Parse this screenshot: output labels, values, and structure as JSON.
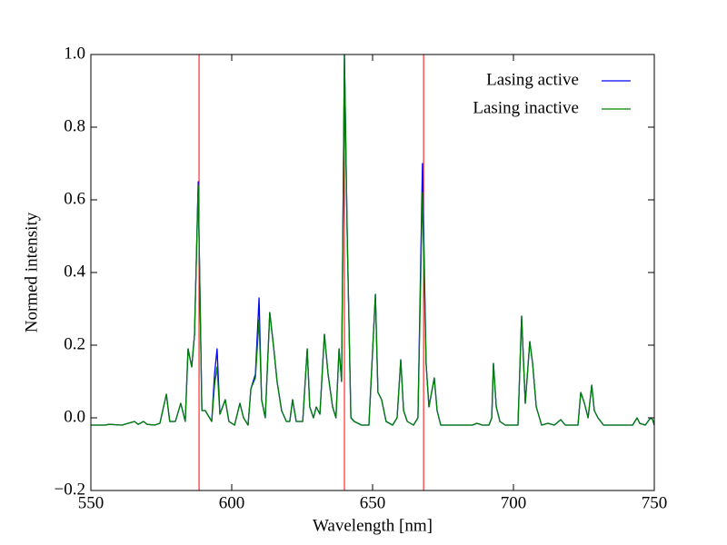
{
  "chart_data": {
    "type": "line",
    "xlabel": "Wavelength [nm]",
    "ylabel": "Normed intensity",
    "xlim": [
      550,
      750
    ],
    "ylim": [
      -0.2,
      1.0
    ],
    "xticks": [
      550,
      600,
      650,
      700,
      750
    ],
    "yticks": [
      {
        "value": -0.2,
        "label": "−0.2"
      },
      {
        "value": 0,
        "label": "0.0"
      },
      0.2,
      0.4,
      0.6,
      0.8,
      {
        "value": 1.0,
        "label": "1.0"
      }
    ],
    "legend": "upper right",
    "vlines": [
      588.4,
      640,
      668.1
    ],
    "vline_color": "#ff0000",
    "x": [
      550,
      555,
      556.5,
      561,
      565.5,
      566.8,
      568.7,
      570,
      572.6,
      574.5,
      576.8,
      578,
      580,
      581.9,
      583.5,
      584.5,
      585.8,
      586.8,
      588.1,
      589.4,
      590.6,
      592.9,
      593.9,
      594.8,
      595.8,
      597.7,
      599,
      601,
      602.9,
      604.2,
      605.8,
      606.8,
      608.4,
      609.7,
      610.6,
      611.9,
      613.5,
      614.8,
      616.1,
      617.7,
      619.4,
      620.6,
      621.6,
      622.9,
      625.2,
      626.8,
      627.7,
      629,
      630,
      631.3,
      632.9,
      634.2,
      635.8,
      637,
      638.1,
      639,
      640,
      641,
      642.3,
      643.5,
      646.1,
      648.7,
      651,
      651.9,
      653.2,
      654.8,
      657.1,
      658.7,
      660,
      661,
      662.3,
      664.5,
      666.1,
      667.7,
      669,
      670,
      671.9,
      672.9,
      674.2,
      685.5,
      687,
      689,
      691.3,
      692.3,
      692.9,
      693.9,
      695.2,
      697.1,
      701.6,
      702.9,
      704.2,
      705.8,
      706.8,
      708.1,
      710,
      712.3,
      714.5,
      716.8,
      718.4,
      722.9,
      723.9,
      725.2,
      726.5,
      727.8,
      728.7,
      730,
      732,
      742.3,
      743.9,
      744.8,
      746.8,
      748.7,
      749.4,
      750
    ],
    "series": [
      {
        "name": "Lasing active",
        "color": "#0000ff",
        "values": [
          -0.02,
          -0.02,
          -0.018,
          -0.02,
          -0.01,
          -0.018,
          -0.01,
          -0.018,
          -0.02,
          -0.015,
          0.065,
          -0.01,
          -0.01,
          0.04,
          -0.01,
          0.19,
          0.14,
          0.23,
          0.65,
          0.02,
          0.02,
          -0.01,
          0.12,
          0.19,
          0.01,
          0.05,
          -0.01,
          -0.02,
          0.04,
          0,
          -0.02,
          0.08,
          0.12,
          0.33,
          0.05,
          0,
          0.29,
          0.2,
          0.1,
          0.02,
          -0.01,
          -0.01,
          0.05,
          -0.01,
          -0.01,
          0.19,
          0.03,
          0,
          0.03,
          0.01,
          0.23,
          0.12,
          0.03,
          0,
          0.19,
          0.1,
          1.0,
          0.5,
          0,
          -0.01,
          -0.02,
          -0.02,
          0.34,
          0.07,
          0.05,
          -0.01,
          -0.02,
          0,
          0.16,
          0.02,
          -0.01,
          -0.02,
          0,
          0.7,
          0.15,
          0.03,
          0.11,
          0.02,
          -0.02,
          -0.02,
          -0.015,
          -0.02,
          -0.02,
          0,
          0.15,
          0.03,
          -0.01,
          -0.02,
          -0.02,
          0.28,
          0.04,
          0.21,
          0.15,
          0.03,
          -0.02,
          -0.015,
          -0.02,
          -0.005,
          -0.02,
          -0.02,
          0.07,
          0.04,
          0,
          0.09,
          0.02,
          0,
          -0.02,
          -0.02,
          0,
          -0.015,
          -0.02,
          0,
          -0.005,
          -0.02
        ]
      },
      {
        "name": "Lasing inactive",
        "color": "#008000",
        "values": [
          -0.02,
          -0.02,
          -0.018,
          -0.02,
          -0.01,
          -0.018,
          -0.01,
          -0.018,
          -0.02,
          -0.015,
          0.065,
          -0.01,
          -0.01,
          0.04,
          -0.01,
          0.19,
          0.14,
          0.23,
          0.64,
          0.02,
          0.02,
          -0.01,
          0.09,
          0.14,
          0.01,
          0.05,
          -0.01,
          -0.02,
          0.04,
          0,
          -0.02,
          0.08,
          0.11,
          0.27,
          0.05,
          0,
          0.29,
          0.2,
          0.1,
          0.02,
          -0.01,
          -0.01,
          0.05,
          -0.01,
          -0.01,
          0.19,
          0.03,
          0,
          0.03,
          0.01,
          0.23,
          0.12,
          0.03,
          0,
          0.19,
          0.1,
          1.0,
          0.5,
          0,
          -0.01,
          -0.02,
          -0.02,
          0.34,
          0.07,
          0.05,
          -0.01,
          -0.02,
          0,
          0.16,
          0.02,
          -0.01,
          -0.02,
          0,
          0.62,
          0.15,
          0.03,
          0.11,
          0.02,
          -0.02,
          -0.02,
          -0.015,
          -0.02,
          -0.02,
          0,
          0.15,
          0.03,
          -0.01,
          -0.02,
          -0.02,
          0.28,
          0.04,
          0.21,
          0.15,
          0.03,
          -0.02,
          -0.015,
          -0.02,
          -0.005,
          -0.02,
          -0.02,
          0.07,
          0.04,
          0,
          0.09,
          0.02,
          0,
          -0.02,
          -0.02,
          0,
          -0.015,
          -0.02,
          0,
          -0.005,
          -0.02
        ]
      }
    ]
  }
}
